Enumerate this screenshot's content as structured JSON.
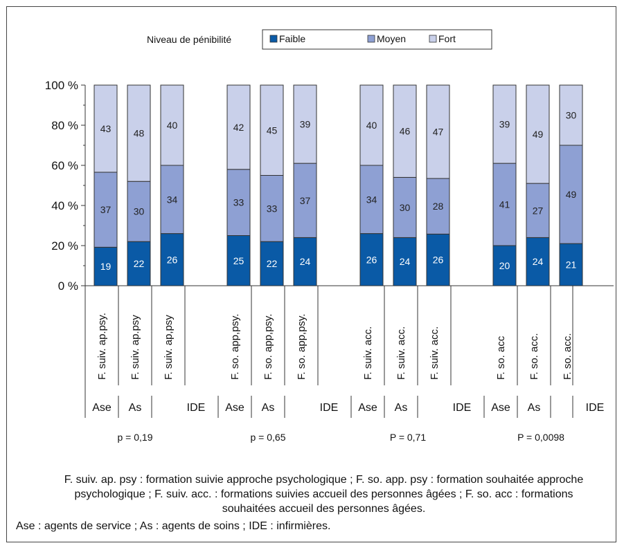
{
  "chart_data": {
    "type": "bar",
    "stacked": true,
    "legend": {
      "title": "Niveau de pénibilité",
      "position": "top"
    },
    "series": [
      {
        "name": "Faible",
        "color": "#0a5aa6",
        "values": [
          19,
          22,
          26,
          25,
          22,
          24,
          26,
          24,
          26,
          20,
          24,
          21
        ]
      },
      {
        "name": "Moyen",
        "color": "#8ea0d3",
        "values": [
          37,
          30,
          34,
          33,
          33,
          37,
          34,
          30,
          28,
          41,
          27,
          49
        ]
      },
      {
        "name": "Fort",
        "color": "#c9d0ea",
        "values": [
          43,
          48,
          40,
          42,
          45,
          39,
          40,
          46,
          47,
          39,
          49,
          30
        ]
      }
    ],
    "groups": [
      {
        "categories": [
          "F. suiv. ap.psy.",
          "F. suiv. ap.psy",
          "F. suiv. ap,psy"
        ],
        "roles": [
          "Ase",
          "As",
          "IDE"
        ],
        "p_value": "p = 0,19"
      },
      {
        "categories": [
          "F. so. app,psy.",
          "F. so. app,psy.",
          "F. so. app,psy."
        ],
        "roles": [
          "Ase",
          "As",
          "IDE"
        ],
        "p_value": "p = 0,65"
      },
      {
        "categories": [
          "F. suiv. acc.",
          "F. suiv. acc.",
          "F. suiv. acc."
        ],
        "roles": [
          "Ase",
          "As",
          "IDE"
        ],
        "p_value": "P = 0,71"
      },
      {
        "categories": [
          "F. so. acc",
          "F. so. acc.",
          "F. so. acc."
        ],
        "roles": [
          "Ase",
          "As",
          "IDE"
        ],
        "p_value": "P = 0,0098"
      }
    ],
    "y_ticks": [
      "0 %",
      "20 %",
      "40 %",
      "60 %",
      "80 %",
      "100 %"
    ],
    "ylim": [
      0,
      100
    ],
    "grid": false
  },
  "notes": {
    "caption": "F. suiv. ap. psy : formation suivie approche psychologique ; F. so. app. psy : formation souhaitée approche psychologique ; F. suiv. acc. : formations suivies accueil des personnes âgées ; F. so. acc : formations souhaitées accueil des personnes âgées.",
    "abbreviations": "Ase : agents de service ; As : agents de soins ; IDE : infirmières."
  }
}
